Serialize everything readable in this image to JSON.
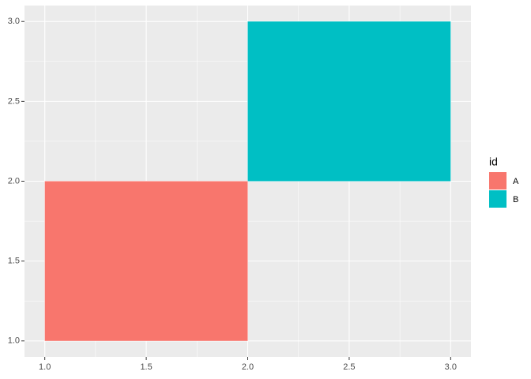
{
  "chart_data": {
    "type": "rect",
    "legend_title": "id",
    "series": [
      {
        "name": "A",
        "color": "#F8766D",
        "xmin": 1,
        "xmax": 2,
        "ymin": 1,
        "ymax": 2
      },
      {
        "name": "B",
        "color": "#00BFC4",
        "xmin": 2,
        "xmax": 3,
        "ymin": 2,
        "ymax": 3
      }
    ],
    "xlim": [
      0.9,
      3.1
    ],
    "ylim": [
      0.9,
      3.1
    ],
    "xticks": [
      {
        "value": 1,
        "label": "1.0"
      },
      {
        "value": 1.5,
        "label": "1.5"
      },
      {
        "value": 2,
        "label": "2.0"
      },
      {
        "value": 2.5,
        "label": "2.5"
      },
      {
        "value": 3,
        "label": "3.0"
      }
    ],
    "yticks": [
      {
        "value": 1,
        "label": "1.0"
      },
      {
        "value": 1.5,
        "label": "1.5"
      },
      {
        "value": 2,
        "label": "2.0"
      },
      {
        "value": 2.5,
        "label": "2.5"
      },
      {
        "value": 3,
        "label": "3.0"
      }
    ],
    "grid": true
  }
}
